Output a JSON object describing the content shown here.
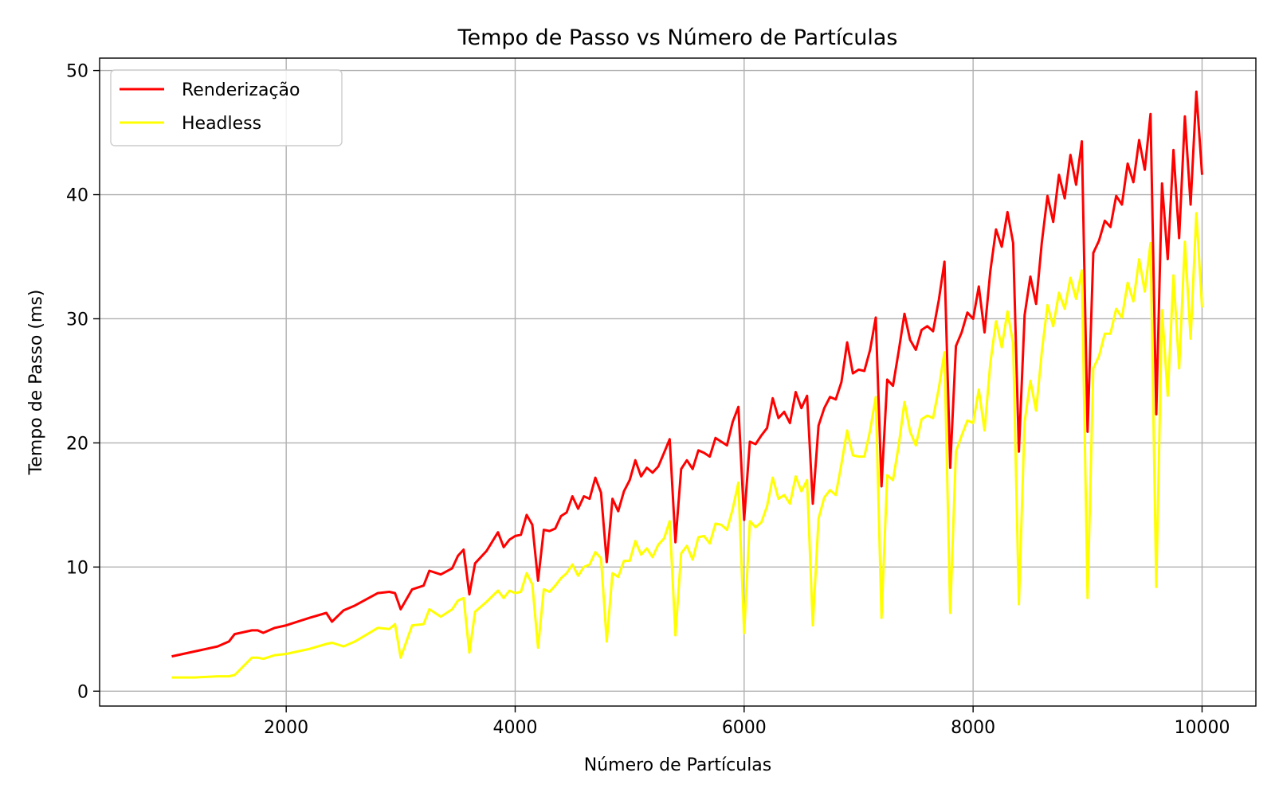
{
  "chart_data": {
    "type": "line",
    "title": "Tempo de Passo vs Número de Partículas",
    "xlabel": "Número de Partículas",
    "ylabel": "Tempo de Passo (ms)",
    "xlim": [
      370,
      10470
    ],
    "ylim": [
      -1.2,
      51
    ],
    "xticks": [
      2000,
      4000,
      6000,
      8000,
      10000
    ],
    "yticks": [
      0,
      10,
      20,
      30,
      40,
      50
    ],
    "grid": true,
    "legend_position": "top-left",
    "x": [
      1000,
      1200,
      1400,
      1500,
      1550,
      1700,
      1750,
      1800,
      1900,
      2000,
      2200,
      2350,
      2400,
      2500,
      2600,
      2800,
      2900,
      2950,
      3000,
      3100,
      3200,
      3250,
      3350,
      3450,
      3500,
      3550,
      3600,
      3650,
      3750,
      3850,
      3900,
      3950,
      4000,
      4050,
      4100,
      4150,
      4200,
      4250,
      4300,
      4350,
      4400,
      4450,
      4500,
      4550,
      4600,
      4650,
      4700,
      4750,
      4800,
      4850,
      4900,
      4950,
      5000,
      5050,
      5100,
      5150,
      5200,
      5250,
      5300,
      5350,
      5400,
      5450,
      5500,
      5550,
      5600,
      5650,
      5700,
      5750,
      5800,
      5850,
      5900,
      5950,
      6000,
      6050,
      6100,
      6150,
      6200,
      6250,
      6300,
      6350,
      6400,
      6450,
      6500,
      6550,
      6600,
      6650,
      6700,
      6750,
      6800,
      6850,
      6900,
      6950,
      7000,
      7050,
      7100,
      7150,
      7200,
      7250,
      7300,
      7350,
      7400,
      7450,
      7500,
      7550,
      7600,
      7650,
      7700,
      7750,
      7800,
      7850,
      7900,
      7950,
      8000,
      8050,
      8100,
      8150,
      8200,
      8250,
      8300,
      8350,
      8400,
      8450,
      8500,
      8550,
      8600,
      8650,
      8700,
      8750,
      8800,
      8850,
      8900,
      8950,
      9000,
      9050,
      9100,
      9150,
      9200,
      9250,
      9300,
      9350,
      9400,
      9450,
      9500,
      9550,
      9600,
      9650,
      9700,
      9750,
      9800,
      9850,
      9900,
      9950,
      10000
    ],
    "series": [
      {
        "name": "Renderização",
        "color": "#ff0000",
        "values": [
          2.8,
          3.2,
          3.6,
          4.0,
          4.6,
          4.9,
          4.9,
          4.7,
          5.1,
          5.3,
          5.9,
          6.3,
          5.6,
          6.5,
          6.9,
          7.9,
          8.0,
          7.9,
          6.6,
          8.2,
          8.5,
          9.7,
          9.4,
          9.9,
          10.9,
          11.4,
          7.8,
          10.3,
          11.3,
          12.8,
          11.6,
          12.2,
          12.5,
          12.6,
          14.2,
          13.4,
          8.9,
          13.0,
          12.9,
          13.1,
          14.1,
          14.4,
          15.7,
          14.7,
          15.7,
          15.5,
          17.2,
          16.0,
          10.4,
          15.5,
          14.5,
          16.1,
          17.0,
          18.6,
          17.3,
          18.0,
          17.6,
          18.1,
          19.2,
          20.3,
          12.0,
          17.9,
          18.6,
          17.9,
          19.4,
          19.2,
          18.9,
          20.4,
          20.1,
          19.8,
          21.7,
          22.9,
          13.8,
          20.1,
          19.9,
          20.6,
          21.2,
          23.6,
          22.0,
          22.5,
          21.6,
          24.1,
          22.8,
          23.8,
          15.1,
          21.4,
          22.8,
          23.7,
          23.5,
          24.9,
          28.1,
          25.6,
          25.9,
          25.8,
          27.5,
          30.1,
          16.5,
          25.1,
          24.6,
          27.4,
          30.4,
          28.3,
          27.5,
          29.1,
          29.4,
          29.0,
          31.5,
          34.6,
          18.0,
          27.8,
          28.9,
          30.5,
          30.0,
          32.6,
          28.9,
          33.8,
          37.2,
          35.8,
          38.6,
          36.1,
          19.3,
          30.3,
          33.4,
          31.2,
          36.1,
          39.9,
          37.8,
          41.6,
          39.7,
          43.2,
          40.8,
          44.3,
          20.9,
          35.3,
          36.3,
          37.9,
          37.4,
          39.9,
          39.2,
          42.5,
          41.0,
          44.4,
          42.0,
          46.5,
          22.3,
          40.9,
          34.8,
          43.6,
          36.5,
          46.3,
          39.2,
          48.3,
          41.6
        ]
      },
      {
        "name": "Headless",
        "color": "#ffff00",
        "values": [
          1.1,
          1.1,
          1.2,
          1.2,
          1.3,
          2.7,
          2.7,
          2.6,
          2.9,
          3.0,
          3.4,
          3.8,
          3.9,
          3.6,
          4.0,
          5.1,
          5.0,
          5.4,
          2.7,
          5.3,
          5.4,
          6.6,
          6.0,
          6.6,
          7.3,
          7.5,
          3.1,
          6.4,
          7.2,
          8.1,
          7.5,
          8.1,
          7.9,
          8.0,
          9.5,
          8.6,
          3.5,
          8.2,
          8.0,
          8.5,
          9.1,
          9.5,
          10.2,
          9.3,
          10.0,
          10.2,
          11.2,
          10.7,
          4.0,
          9.5,
          9.2,
          10.5,
          10.5,
          12.1,
          11.0,
          11.5,
          10.8,
          11.8,
          12.3,
          13.7,
          4.5,
          11.1,
          11.7,
          10.6,
          12.4,
          12.5,
          11.9,
          13.5,
          13.4,
          13.0,
          14.7,
          16.8,
          4.7,
          13.7,
          13.2,
          13.6,
          14.9,
          17.2,
          15.5,
          15.8,
          15.1,
          17.3,
          16.1,
          17.0,
          5.3,
          13.9,
          15.6,
          16.2,
          15.8,
          18.3,
          21.0,
          19.0,
          18.9,
          18.9,
          21.0,
          23.7,
          5.9,
          17.4,
          17.0,
          19.8,
          23.3,
          20.9,
          19.8,
          21.9,
          22.2,
          22.0,
          24.4,
          27.3,
          6.3,
          19.3,
          20.6,
          21.8,
          21.6,
          24.3,
          21.0,
          26.4,
          29.8,
          27.7,
          30.6,
          28.0,
          7.0,
          21.7,
          25.0,
          22.6,
          27.3,
          31.1,
          29.4,
          32.1,
          30.8,
          33.3,
          31.6,
          33.9,
          7.5,
          26.0,
          27.0,
          28.8,
          28.8,
          30.8,
          30.1,
          32.9,
          31.4,
          34.8,
          32.2,
          36.1,
          8.4,
          30.7,
          23.8,
          33.5,
          26.0,
          36.2,
          28.4,
          38.5,
          30.9
        ]
      }
    ]
  }
}
